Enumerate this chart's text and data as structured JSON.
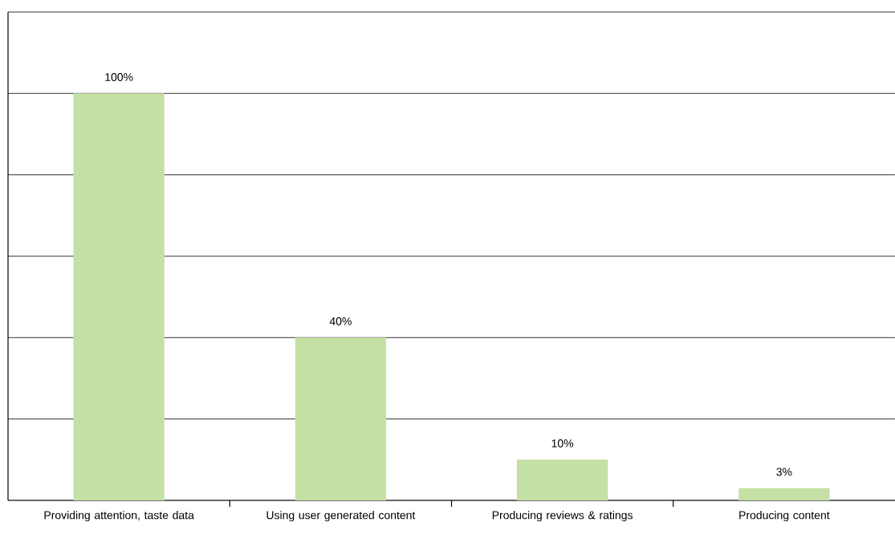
{
  "chart_data": {
    "type": "bar",
    "categories": [
      "Providing attention, taste data",
      "Using user generated content",
      "Producing reviews & ratings",
      "Producing content"
    ],
    "values": [
      100,
      40,
      10,
      3
    ],
    "value_labels": [
      "100%",
      "40%",
      "10%",
      "3%"
    ],
    "color": "#c5e0a5",
    "ylim": [
      0,
      120
    ],
    "yticks": [
      {
        "value": 0,
        "label": null
      },
      {
        "value": 20,
        "label": null
      },
      {
        "value": 40,
        "label": null
      },
      {
        "value": 60,
        "label": null
      },
      {
        "value": 80,
        "label": null
      },
      {
        "value": 100,
        "label": null
      },
      {
        "value": 120,
        "label": null
      }
    ],
    "tick_labels": "x",
    "grid": "y"
  }
}
